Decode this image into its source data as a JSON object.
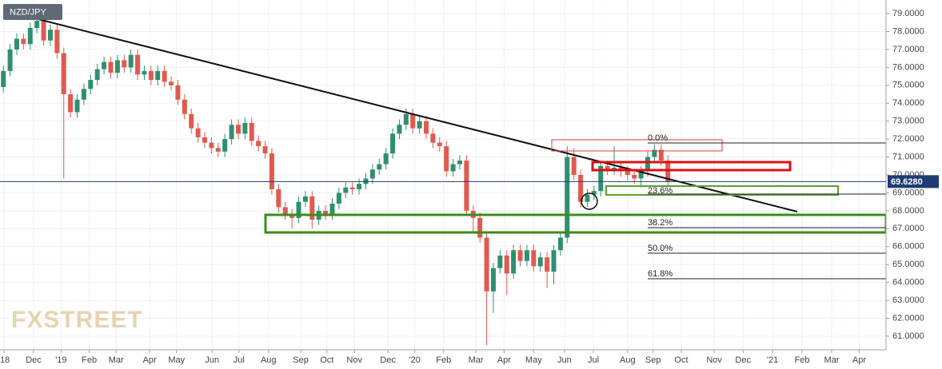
{
  "chart_data": {
    "type": "candlestick",
    "title": "NZD/JPY",
    "watermark": "FXSTREET",
    "up_color": "#2f8f70",
    "down_color": "#e05a4f",
    "grid": true,
    "ylim": [
      60.24,
      79.76
    ],
    "yticks": [
      {
        "value": 61,
        "label": "61.0000"
      },
      {
        "value": 62,
        "label": "62.0000"
      },
      {
        "value": 63,
        "label": "63.0000"
      },
      {
        "value": 64,
        "label": "64.0000"
      },
      {
        "value": 65,
        "label": "65.0000"
      },
      {
        "value": 66,
        "label": "66.0000"
      },
      {
        "value": 67,
        "label": "67.0000"
      },
      {
        "value": 68,
        "label": "68.0000"
      },
      {
        "value": 69,
        "label": "69.0000"
      },
      {
        "value": 70,
        "label": "70.0000"
      },
      {
        "value": 71,
        "label": "71.0000"
      },
      {
        "value": 72,
        "label": "72.0000"
      },
      {
        "value": 73,
        "label": "73.0000"
      },
      {
        "value": 74,
        "label": "74.0000"
      },
      {
        "value": 75,
        "label": "75.0000"
      },
      {
        "value": 76,
        "label": "76.0000"
      },
      {
        "value": 77,
        "label": "77.0000"
      },
      {
        "value": 78,
        "label": "78.0000"
      },
      {
        "value": 79,
        "label": "79.0000"
      }
    ],
    "xlim": [
      0,
      132
    ],
    "xticks": [
      {
        "value": 0.6,
        "label": "'18"
      },
      {
        "value": 5.0,
        "label": "Dec"
      },
      {
        "value": 9.1,
        "label": "'19"
      },
      {
        "value": 13.3,
        "label": "Feb"
      },
      {
        "value": 17.3,
        "label": "Mar"
      },
      {
        "value": 22.3,
        "label": "Apr"
      },
      {
        "value": 26.3,
        "label": "May"
      },
      {
        "value": 31.6,
        "label": "Jun"
      },
      {
        "value": 35.6,
        "label": "Jul"
      },
      {
        "value": 40.0,
        "label": "Aug"
      },
      {
        "value": 44.8,
        "label": "Sep"
      },
      {
        "value": 48.7,
        "label": "Oct"
      },
      {
        "value": 52.8,
        "label": "Nov"
      },
      {
        "value": 57.8,
        "label": "Dec"
      },
      {
        "value": 61.8,
        "label": "'20"
      },
      {
        "value": 66.1,
        "label": "Feb"
      },
      {
        "value": 70.9,
        "label": "Mar"
      },
      {
        "value": 75.1,
        "label": "Apr"
      },
      {
        "value": 79.5,
        "label": "May"
      },
      {
        "value": 84.1,
        "label": "Jun"
      },
      {
        "value": 88.4,
        "label": "Jul"
      },
      {
        "value": 93.5,
        "label": "Aug"
      },
      {
        "value": 97.3,
        "label": "Sep"
      },
      {
        "value": 101.5,
        "label": "Oct"
      },
      {
        "value": 106.4,
        "label": "Nov"
      },
      {
        "value": 110.7,
        "label": "Dec"
      },
      {
        "value": 115.1,
        "label": "'21"
      },
      {
        "value": 119.5,
        "label": "Feb"
      },
      {
        "value": 123.9,
        "label": "Mar"
      },
      {
        "value": 128.0,
        "label": "Apr"
      }
    ],
    "last_price": {
      "value": 69.628,
      "label": "69.6280"
    },
    "fib_labels": [
      "0.0%",
      "23.6%",
      "38.2%",
      "50.0%",
      "61.8%"
    ],
    "open": [
      74.9,
      75.8,
      77.0,
      77.6,
      77.3,
      78.2,
      78.6,
      77.5,
      78.1,
      76.8,
      74.5,
      73.5,
      74.2,
      74.8,
      75.3,
      75.9,
      76.3,
      75.7,
      76.4,
      76.0,
      76.7,
      75.6,
      75.8,
      75.3,
      75.8,
      75.2,
      75.0,
      74.2,
      73.4,
      72.6,
      72.1,
      71.8,
      71.5,
      71.3,
      72.0,
      72.8,
      72.3,
      72.9,
      71.9,
      71.6,
      71.2,
      69.2,
      68.2,
      67.8,
      67.6,
      68.5,
      68.8,
      67.5,
      68.0,
      67.8,
      68.4,
      69.0,
      69.3,
      69.2,
      69.5,
      69.8,
      70.3,
      70.6,
      71.2,
      72.3,
      72.8,
      73.4,
      72.6,
      73.0,
      72.3,
      71.8,
      71.6,
      70.2,
      70.6,
      70.8,
      68.0,
      67.6,
      66.5,
      63.5,
      64.8,
      65.5,
      64.5,
      65.8,
      65.2,
      65.8,
      64.9,
      65.4,
      64.6,
      65.8,
      66.5,
      71.0,
      70.0,
      68.5,
      68.9,
      69.1,
      70.5,
      70.3,
      70.4,
      70.2,
      70.0,
      69.8,
      70.2,
      71.0,
      71.4,
      70.8
    ],
    "high": [
      76.1,
      77.3,
      77.9,
      77.9,
      78.5,
      79.0,
      78.9,
      78.4,
      78.4,
      77.1,
      74.8,
      74.5,
      75.1,
      75.6,
      76.2,
      76.6,
      76.6,
      76.7,
      76.7,
      77.0,
      77.0,
      76.1,
      76.1,
      76.1,
      76.1,
      75.5,
      75.3,
      74.5,
      73.7,
      72.9,
      72.4,
      72.1,
      71.8,
      72.3,
      73.1,
      73.1,
      73.2,
      73.2,
      72.2,
      71.9,
      71.5,
      69.5,
      68.5,
      68.1,
      68.8,
      69.1,
      69.1,
      68.3,
      68.3,
      68.7,
      69.3,
      69.6,
      69.6,
      69.8,
      70.1,
      70.6,
      70.9,
      71.5,
      72.6,
      73.1,
      73.7,
      73.7,
      73.3,
      73.3,
      72.6,
      72.1,
      71.9,
      70.9,
      71.1,
      71.1,
      68.3,
      67.9,
      66.8,
      65.1,
      65.8,
      65.8,
      66.1,
      66.1,
      66.1,
      66.1,
      65.7,
      65.7,
      66.1,
      66.8,
      71.6,
      71.5,
      70.3,
      69.2,
      69.4,
      70.8,
      70.8,
      71.6,
      70.7,
      70.5,
      70.3,
      70.5,
      71.3,
      71.7,
      71.7,
      71.1
    ],
    "low": [
      74.6,
      75.5,
      76.7,
      77.0,
      77.0,
      77.9,
      77.2,
      77.2,
      76.5,
      69.8,
      73.2,
      73.2,
      73.9,
      74.5,
      75.0,
      75.6,
      75.4,
      75.4,
      75.7,
      75.7,
      75.3,
      75.3,
      75.0,
      75.0,
      74.9,
      74.7,
      73.9,
      73.1,
      72.3,
      71.8,
      71.5,
      71.2,
      71.0,
      71.0,
      71.7,
      72.0,
      72.0,
      71.6,
      71.3,
      70.9,
      68.9,
      67.9,
      67.5,
      67.0,
      67.3,
      68.2,
      67.0,
      67.2,
      67.5,
      67.5,
      68.1,
      68.7,
      68.9,
      68.9,
      69.2,
      69.5,
      70.0,
      70.3,
      70.9,
      72.0,
      72.5,
      72.3,
      72.3,
      72.0,
      71.5,
      71.3,
      69.9,
      69.9,
      70.3,
      67.7,
      66.8,
      66.2,
      60.5,
      62.3,
      64.5,
      63.3,
      64.2,
      64.9,
      64.9,
      64.6,
      64.6,
      63.7,
      63.9,
      65.5,
      66.2,
      69.7,
      68.2,
      68.2,
      68.6,
      68.8,
      70.0,
      70.0,
      69.9,
      69.7,
      69.5,
      69.3,
      69.9,
      70.7,
      70.5,
      69.4
    ],
    "close": [
      75.8,
      77.0,
      77.6,
      77.3,
      78.2,
      78.6,
      77.5,
      78.1,
      76.8,
      74.5,
      73.5,
      74.2,
      74.8,
      75.3,
      75.9,
      76.3,
      75.7,
      76.4,
      76.0,
      76.7,
      75.6,
      75.8,
      75.3,
      75.8,
      75.2,
      75.0,
      74.2,
      73.4,
      72.6,
      72.1,
      71.8,
      71.5,
      71.3,
      72.0,
      72.8,
      72.3,
      72.9,
      71.9,
      71.6,
      71.2,
      69.2,
      68.2,
      67.8,
      67.6,
      68.5,
      68.8,
      67.5,
      68.0,
      67.8,
      68.4,
      69.0,
      69.3,
      69.2,
      69.5,
      69.8,
      70.3,
      70.6,
      71.2,
      72.3,
      72.8,
      73.4,
      72.6,
      73.0,
      72.3,
      71.8,
      71.6,
      70.2,
      70.6,
      70.8,
      68.0,
      67.6,
      66.5,
      63.5,
      64.8,
      65.5,
      64.5,
      65.8,
      65.2,
      65.8,
      64.9,
      65.4,
      64.6,
      65.8,
      66.5,
      71.0,
      70.0,
      68.5,
      68.9,
      69.1,
      70.5,
      70.3,
      70.4,
      70.2,
      70.0,
      69.8,
      70.2,
      71.0,
      71.4,
      70.8,
      69.6
    ]
  }
}
